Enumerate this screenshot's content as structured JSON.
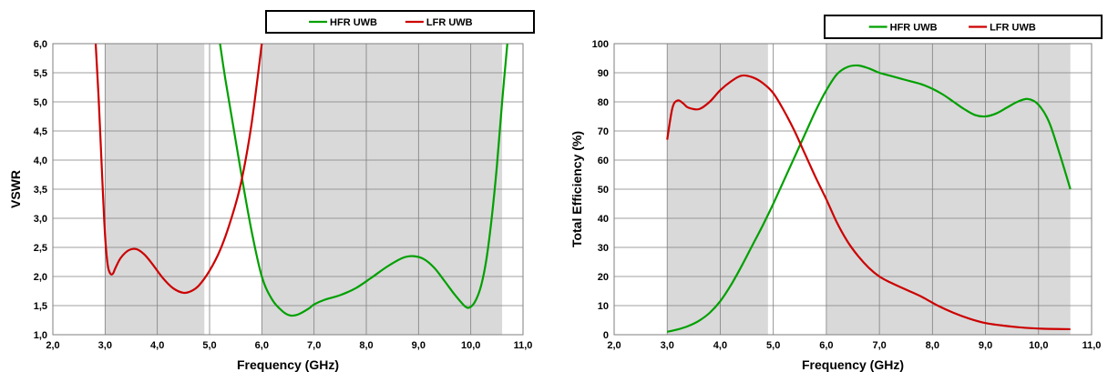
{
  "chart_data": [
    {
      "type": "line",
      "xlabel": "Frequency (GHz)",
      "ylabel": "VSWR",
      "xlim": [
        2.0,
        11.0
      ],
      "ylim": [
        1.0,
        6.0
      ],
      "xticks": [
        "2,0",
        "3,0",
        "4,0",
        "5,0",
        "6,0",
        "7,0",
        "8,0",
        "9,0",
        "10,0",
        "11,0"
      ],
      "yticks": [
        "1,0",
        "1,5",
        "2,0",
        "2,5",
        "3,0",
        "3,5",
        "4,0",
        "4,5",
        "5,0",
        "5,5",
        "6,0"
      ],
      "grid": true,
      "legend_position": "top-right",
      "shaded_bands": [
        [
          3.0,
          4.9
        ],
        [
          6.0,
          10.6
        ]
      ],
      "series": [
        {
          "name": "HFR UWB",
          "color": "#00a000",
          "x": [
            5.2,
            5.3,
            5.45,
            5.6,
            5.8,
            6.0,
            6.2,
            6.4,
            6.55,
            6.7,
            6.9,
            7.0,
            7.2,
            7.5,
            7.8,
            8.1,
            8.4,
            8.7,
            8.9,
            9.1,
            9.3,
            9.5,
            9.7,
            9.9,
            10.0,
            10.1,
            10.2,
            10.3,
            10.4,
            10.5,
            10.6,
            10.7
          ],
          "y": [
            6.0,
            5.4,
            4.6,
            3.8,
            2.8,
            2.0,
            1.6,
            1.4,
            1.33,
            1.35,
            1.45,
            1.52,
            1.6,
            1.68,
            1.8,
            1.98,
            2.17,
            2.32,
            2.35,
            2.3,
            2.15,
            1.92,
            1.68,
            1.48,
            1.48,
            1.6,
            1.85,
            2.3,
            3.0,
            3.9,
            5.0,
            6.0
          ]
        },
        {
          "name": "LFR UWB",
          "color": "#cc0000",
          "x": [
            2.82,
            2.88,
            2.95,
            3.0,
            3.05,
            3.1,
            3.15,
            3.2,
            3.3,
            3.45,
            3.6,
            3.75,
            3.9,
            4.1,
            4.3,
            4.5,
            4.65,
            4.8,
            5.0,
            5.2,
            5.4,
            5.6,
            5.8,
            6.0
          ],
          "y": [
            6.0,
            5.0,
            3.6,
            2.7,
            2.2,
            2.05,
            2.05,
            2.15,
            2.32,
            2.45,
            2.47,
            2.38,
            2.22,
            1.98,
            1.8,
            1.72,
            1.75,
            1.85,
            2.1,
            2.45,
            2.95,
            3.6,
            4.6,
            6.0
          ]
        }
      ]
    },
    {
      "type": "line",
      "xlabel": "Frequency (GHz)",
      "ylabel": "Total  Efficiency (%)",
      "xlim": [
        2.0,
        11.0
      ],
      "ylim": [
        0,
        100
      ],
      "xticks": [
        "2,0",
        "3,0",
        "4,0",
        "5,0",
        "6,0",
        "7,0",
        "8,0",
        "9,0",
        "10,0",
        "11,0"
      ],
      "yticks": [
        "0",
        "10",
        "20",
        "30",
        "40",
        "50",
        "60",
        "70",
        "80",
        "90",
        "100"
      ],
      "grid": true,
      "legend_position": "top-right",
      "shaded_bands": [
        [
          3.0,
          4.9
        ],
        [
          6.0,
          10.6
        ]
      ],
      "series": [
        {
          "name": "HFR UWB",
          "color": "#00a000",
          "x": [
            3.0,
            3.2,
            3.4,
            3.6,
            3.8,
            4.0,
            4.2,
            4.4,
            4.6,
            4.8,
            5.0,
            5.2,
            5.4,
            5.6,
            5.8,
            6.0,
            6.2,
            6.4,
            6.6,
            6.8,
            7.0,
            7.2,
            7.4,
            7.6,
            7.8,
            8.0,
            8.2,
            8.4,
            8.6,
            8.8,
            9.0,
            9.2,
            9.4,
            9.6,
            9.8,
            10.0,
            10.2,
            10.4,
            10.6
          ],
          "y": [
            1,
            1.8,
            3,
            4.8,
            7.5,
            11.5,
            17,
            23.5,
            30.5,
            37.5,
            45,
            53,
            61,
            69,
            77,
            84,
            89.5,
            92,
            92.5,
            91.5,
            90,
            89,
            88,
            87,
            86,
            84.5,
            82.5,
            80,
            77.5,
            75.5,
            75,
            76,
            78,
            80,
            81,
            79,
            73,
            62,
            50
          ]
        },
        {
          "name": "LFR UWB",
          "color": "#cc0000",
          "x": [
            3.0,
            3.1,
            3.2,
            3.3,
            3.4,
            3.6,
            3.8,
            4.0,
            4.2,
            4.4,
            4.6,
            4.8,
            5.0,
            5.2,
            5.4,
            5.6,
            5.8,
            6.0,
            6.2,
            6.4,
            6.6,
            6.8,
            7.0,
            7.2,
            7.5,
            7.8,
            8.1,
            8.4,
            8.7,
            9.0,
            9.3,
            9.6,
            9.9,
            10.2,
            10.6
          ],
          "y": [
            67,
            78,
            80.5,
            79.5,
            78,
            77.5,
            80,
            84,
            87,
            89,
            88.5,
            86.5,
            83,
            77,
            70,
            62,
            54,
            46.5,
            38.5,
            32,
            27,
            23,
            20,
            18,
            15.5,
            13,
            10,
            7.5,
            5.5,
            4,
            3.2,
            2.6,
            2.2,
            2,
            1.9
          ]
        }
      ]
    }
  ]
}
